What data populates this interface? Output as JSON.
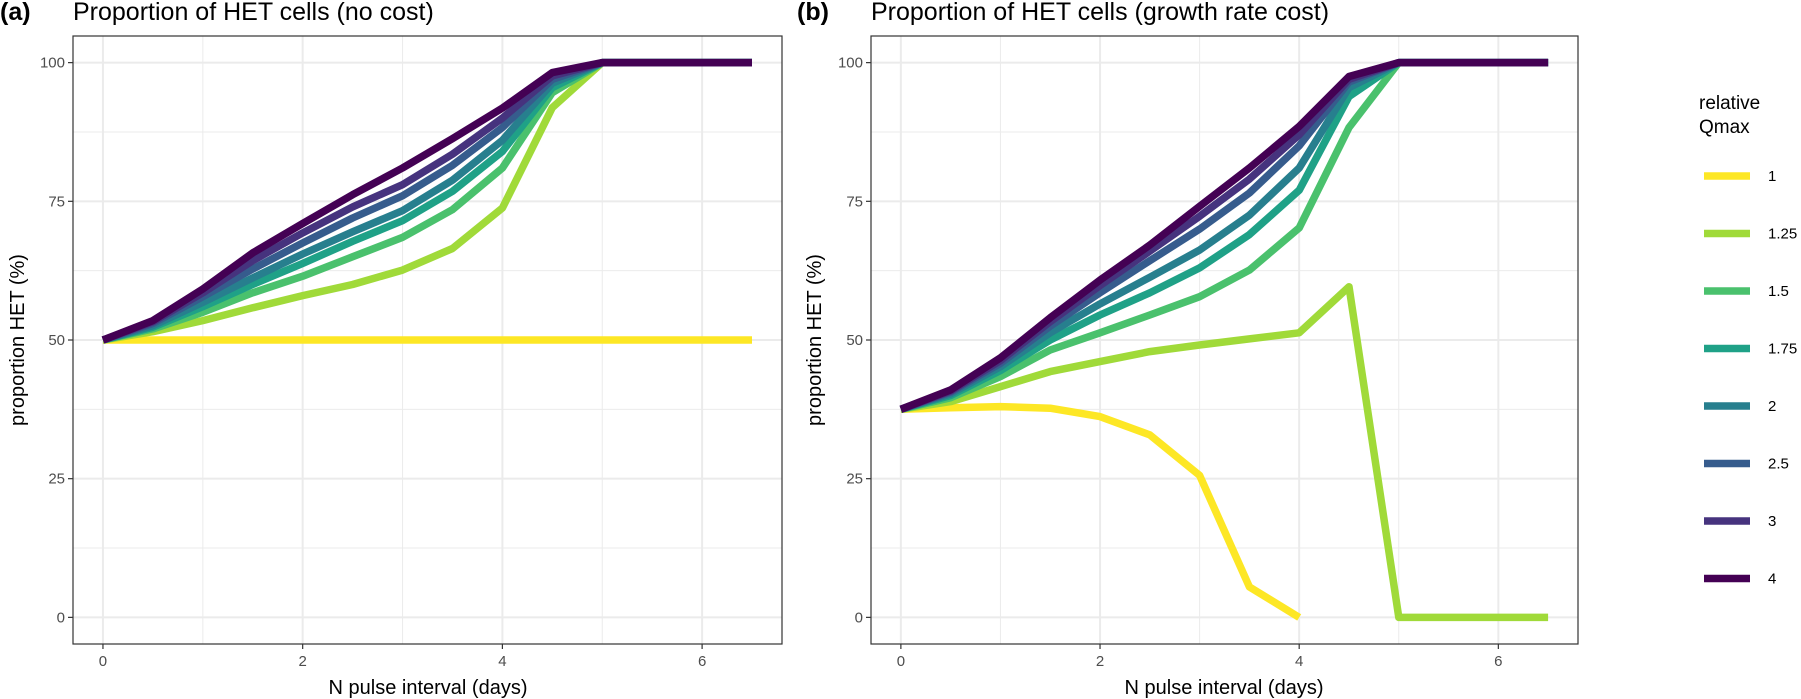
{
  "chart_data": [
    {
      "type": "line",
      "tag": "(a)",
      "title": "Proportion of HET cells (no cost)",
      "xlabel": "N pulse interval (days)",
      "ylabel": "proportion HET (%)",
      "xlim": [
        -0.3,
        6.8
      ],
      "ylim": [
        -4.8,
        104.8
      ],
      "xticks": [
        0,
        2,
        4,
        6
      ],
      "xtick_labels": [
        "0",
        "2",
        "4",
        "6"
      ],
      "yticks": [
        0,
        25,
        50,
        75,
        100
      ],
      "ytick_labels": [
        "0",
        "25",
        "50",
        "75",
        "100"
      ],
      "grid": true,
      "x": [
        0,
        0.5,
        1,
        1.5,
        2,
        2.5,
        3,
        3.5,
        4,
        4.5,
        5,
        5.5,
        6,
        6.5
      ],
      "series": [
        {
          "name": "1",
          "values": [
            50,
            50,
            50,
            50,
            50,
            50,
            50,
            50,
            50,
            50,
            50,
            50,
            50,
            50
          ]
        },
        {
          "name": "1.25",
          "values": [
            50,
            51.5,
            53.5,
            55.8,
            58,
            60,
            62.6,
            66.5,
            73.8,
            91.9,
            100,
            100,
            100,
            100
          ]
        },
        {
          "name": "1.5",
          "values": [
            50,
            52,
            55,
            58.5,
            61.5,
            65,
            68.5,
            73.5,
            81,
            94.6,
            100,
            100,
            100,
            100
          ]
        },
        {
          "name": "1.75",
          "values": [
            50,
            52.3,
            56,
            60,
            63.8,
            67.8,
            71.5,
            76.8,
            84,
            95.5,
            100,
            100,
            100,
            100
          ]
        },
        {
          "name": "2",
          "values": [
            50,
            52.6,
            56.8,
            61.2,
            65.5,
            69.5,
            73.3,
            78.8,
            86,
            96.3,
            100,
            100,
            100,
            100
          ]
        },
        {
          "name": "2.5",
          "values": [
            50,
            53,
            57.8,
            62.8,
            67.5,
            72,
            76,
            81.5,
            88.3,
            97,
            100,
            100,
            100,
            100
          ]
        },
        {
          "name": "3",
          "values": [
            50,
            53.3,
            58.5,
            64.3,
            69.3,
            74,
            78,
            83.5,
            90,
            97.6,
            100,
            100,
            100,
            100
          ]
        },
        {
          "name": "4",
          "values": [
            50,
            53.5,
            59.2,
            65.7,
            71,
            76.2,
            81,
            86.3,
            91.8,
            98.2,
            100,
            100,
            100,
            100
          ]
        }
      ]
    },
    {
      "type": "line",
      "tag": "(b)",
      "title": "Proportion of HET cells (growth rate cost)",
      "xlabel": "N pulse interval (days)",
      "ylabel": "proportion HET (%)",
      "xlim": [
        -0.3,
        6.8
      ],
      "ylim": [
        -4.8,
        104.8
      ],
      "xticks": [
        0,
        2,
        4,
        6
      ],
      "xtick_labels": [
        "0",
        "2",
        "4",
        "6"
      ],
      "yticks": [
        0,
        25,
        50,
        75,
        100
      ],
      "ytick_labels": [
        "0",
        "25",
        "50",
        "75",
        "100"
      ],
      "grid": true,
      "x": [
        0,
        0.5,
        1,
        1.5,
        2,
        2.5,
        3,
        3.5,
        4,
        4.5,
        5,
        5.5,
        6,
        6.5
      ],
      "series": [
        {
          "name": "1",
          "values": [
            37.5,
            37.8,
            38,
            37.7,
            36.2,
            32.9,
            25.6,
            5.5,
            0
          ]
        },
        {
          "name": "1.25",
          "values": [
            37.5,
            38.9,
            41.6,
            44.3,
            46.1,
            47.9,
            49.1,
            50.2,
            51.3,
            59.6,
            0,
            0,
            0,
            0
          ]
        },
        {
          "name": "1.5",
          "values": [
            37.5,
            39.6,
            43.4,
            48.2,
            51.3,
            54.5,
            57.8,
            62.6,
            70.2,
            88.3,
            100,
            100,
            100,
            100
          ]
        },
        {
          "name": "1.75",
          "values": [
            37.5,
            40,
            44.5,
            50,
            54.5,
            58.5,
            63,
            69,
            77,
            93.9,
            100,
            100,
            100,
            100
          ]
        },
        {
          "name": "2",
          "values": [
            37.5,
            40.3,
            45.2,
            51.3,
            56.5,
            61.3,
            66.2,
            72.5,
            81,
            95.5,
            100,
            100,
            100,
            100
          ]
        },
        {
          "name": "2.5",
          "values": [
            37.5,
            40.6,
            45.8,
            52.5,
            58.5,
            64.3,
            70,
            76.5,
            85,
            96.5,
            100,
            100,
            100,
            100
          ]
        },
        {
          "name": "3",
          "values": [
            37.5,
            40.8,
            46.3,
            53.3,
            59.8,
            66,
            72.3,
            79,
            87,
            97,
            100,
            100,
            100,
            100
          ]
        },
        {
          "name": "4",
          "values": [
            37.5,
            41,
            46.8,
            54,
            60.8,
            67.1,
            74.1,
            81,
            88.5,
            97.5,
            100,
            100,
            100,
            100
          ]
        }
      ]
    }
  ],
  "legend": {
    "title_line1": "relative",
    "title_line2": "Qmax",
    "placement": "right",
    "items": [
      {
        "label": "1",
        "color": "#FDE725"
      },
      {
        "label": "1.25",
        "color": "#A0DA39"
      },
      {
        "label": "1.5",
        "color": "#4AC16D"
      },
      {
        "label": "1.75",
        "color": "#1FA187"
      },
      {
        "label": "2",
        "color": "#277F8E"
      },
      {
        "label": "2.5",
        "color": "#365C8D"
      },
      {
        "label": "3",
        "color": "#46337E"
      },
      {
        "label": "4",
        "color": "#440154"
      }
    ]
  }
}
